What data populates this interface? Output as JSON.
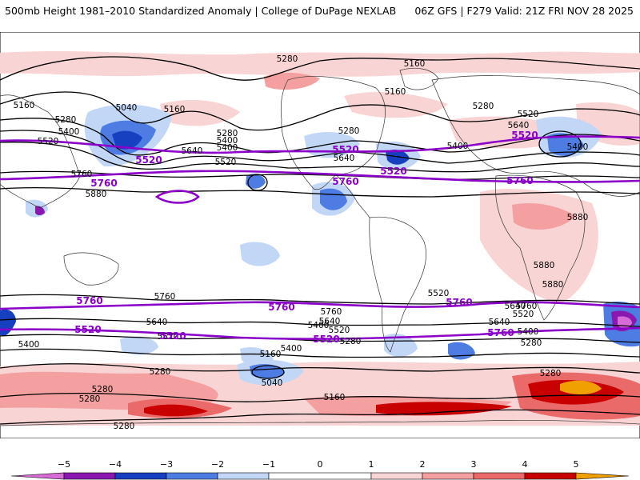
{
  "header": {
    "left": "500mb Height 1981–2010 Standardized Anomaly | College of DuPage NEXLAB",
    "right": "06Z GFS | F279 Valid: 21Z FRI NOV 28 2025"
  },
  "colors": {
    "neg5": "#d86cd6",
    "neg4": "#8a18b0",
    "neg3": "#1640c0",
    "neg2": "#4d7de3",
    "neg1": "#c2d7f6",
    "pos1": "#f9d4d4",
    "pos2": "#f4a0a0",
    "pos3": "#ea6a6a",
    "pos4": "#c80000",
    "pos5": "#f0a000",
    "height_contour": "#000000",
    "highlight_contour": "#8a00c8"
  },
  "colorbar": {
    "ticks": [
      "−5",
      "−4",
      "−3",
      "−2",
      "−1",
      "0",
      "1",
      "2",
      "3",
      "4",
      "5"
    ]
  },
  "contour_labels": {
    "black": [
      "5280",
      "5160",
      "5160",
      "5040",
      "5160",
      "5280",
      "5400",
      "5520",
      "5640",
      "5400",
      "5280",
      "5400",
      "5520",
      "5760",
      "5880",
      "5280",
      "5160",
      "5280",
      "5520",
      "5640",
      "5400",
      "5640",
      "5400",
      "5880",
      "5880",
      "5880",
      "5760",
      "5640",
      "5520",
      "5400",
      "5280",
      "5160",
      "5040",
      "5160",
      "5400",
      "5520",
      "5640",
      "5760",
      "5640",
      "5520",
      "5400",
      "5280",
      "5760",
      "5640",
      "5520",
      "5400",
      "5280",
      "5280",
      "5280",
      "5280",
      "5280"
    ],
    "purple": [
      "5520",
      "5760",
      "5760",
      "5520",
      "5520",
      "5760",
      "5520",
      "5760",
      "5760",
      "5520",
      "5760",
      "5520",
      "5760",
      "5520"
    ]
  }
}
